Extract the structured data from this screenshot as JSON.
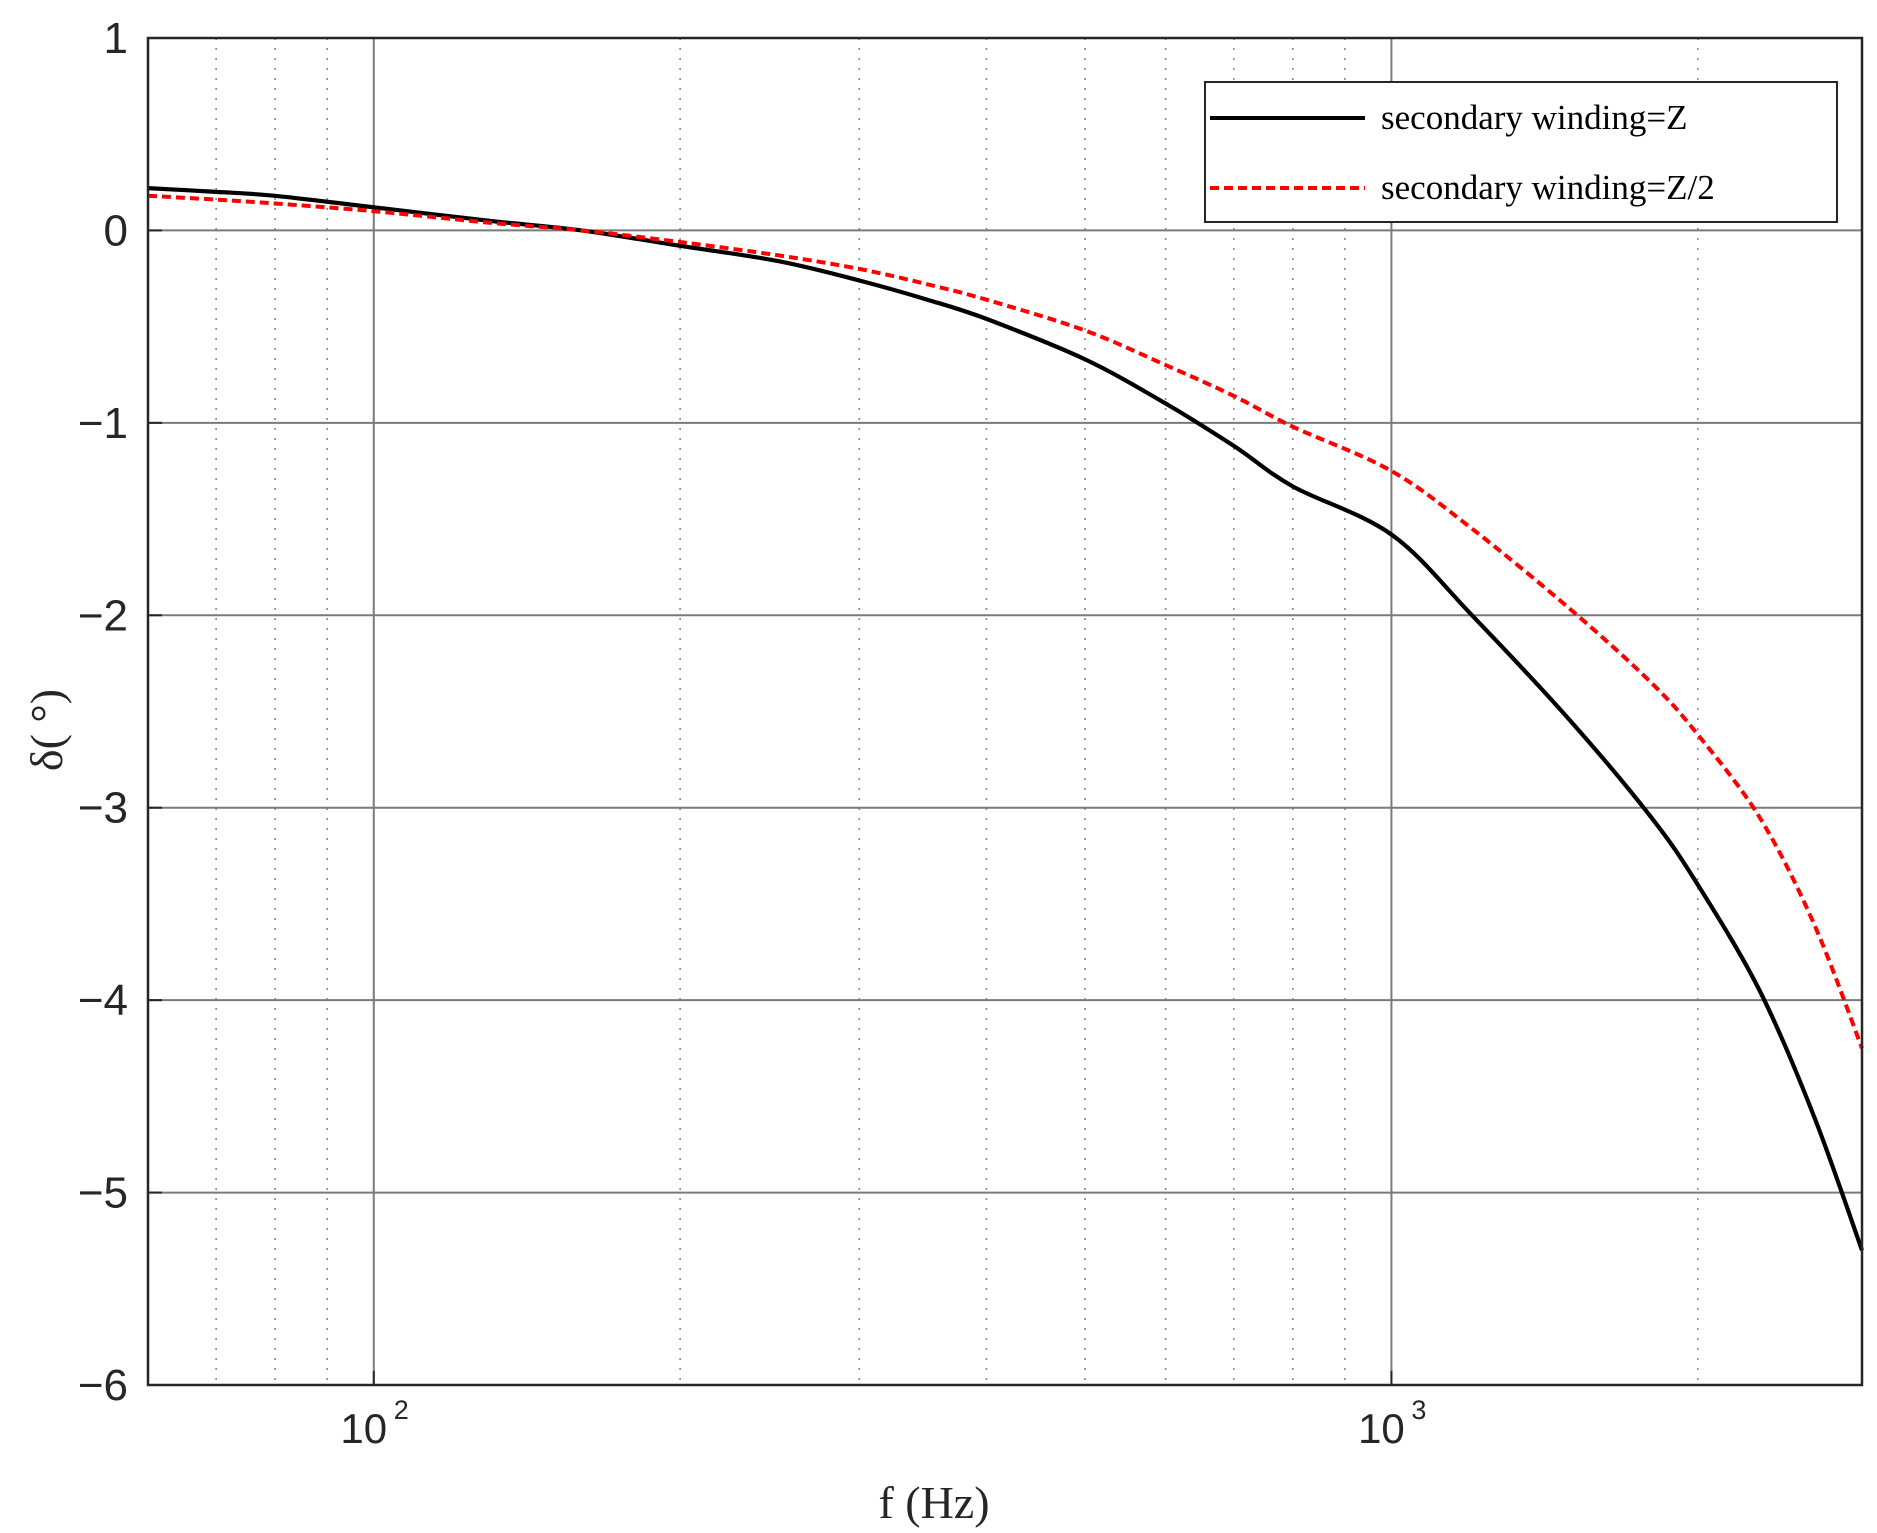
{
  "chart_data": {
    "type": "line",
    "title": "",
    "xlabel": "f (Hz)",
    "ylabel": "δ( °)",
    "xscale": "log",
    "xlim": [
      60,
      2900
    ],
    "ylim": [
      -6,
      1
    ],
    "grid": true,
    "legend_position": "top-right",
    "yticks": [
      {
        "value": 1,
        "label": "1"
      },
      {
        "value": 0,
        "label": "0"
      },
      {
        "value": -1,
        "label": "−1"
      },
      {
        "value": -2,
        "label": "−2"
      },
      {
        "value": -3,
        "label": "−3"
      },
      {
        "value": -4,
        "label": "−4"
      },
      {
        "value": -5,
        "label": "−5"
      },
      {
        "value": -6,
        "label": "−6"
      }
    ],
    "xticks": [
      {
        "value": 100,
        "base": "10",
        "exp": "2"
      },
      {
        "value": 1000,
        "base": "10",
        "exp": "3"
      }
    ],
    "minor_x": [
      60,
      70,
      80,
      90,
      200,
      300,
      400,
      500,
      600,
      700,
      800,
      900,
      2000
    ],
    "series": [
      {
        "name": "secondary winding=Z",
        "color": "#000000",
        "style": "solid",
        "x": [
          60,
          70,
          80,
          100,
          130,
          160,
          200,
          250,
          300,
          350,
          400,
          500,
          600,
          700,
          800,
          1000,
          1200,
          1500,
          1800,
          2000,
          2300,
          2600,
          2900
        ],
        "y": [
          0.22,
          0.2,
          0.18,
          0.12,
          0.05,
          0.0,
          -0.08,
          -0.16,
          -0.26,
          -0.36,
          -0.46,
          -0.67,
          -0.9,
          -1.12,
          -1.33,
          -1.58,
          -2.0,
          -2.55,
          -3.05,
          -3.4,
          -3.95,
          -4.6,
          -5.3
        ]
      },
      {
        "name": "secondary winding=Z/2",
        "color": "#ff0000",
        "style": "dotted",
        "x": [
          60,
          70,
          80,
          100,
          130,
          160,
          200,
          250,
          300,
          350,
          400,
          500,
          600,
          700,
          800,
          1000,
          1200,
          1500,
          1800,
          2000,
          2300,
          2600,
          2900
        ],
        "y": [
          0.18,
          0.16,
          0.14,
          0.1,
          0.04,
          0.0,
          -0.06,
          -0.13,
          -0.2,
          -0.28,
          -0.36,
          -0.52,
          -0.7,
          -0.86,
          -1.02,
          -1.25,
          -1.55,
          -1.97,
          -2.35,
          -2.62,
          -3.05,
          -3.6,
          -4.25
        ]
      }
    ]
  }
}
